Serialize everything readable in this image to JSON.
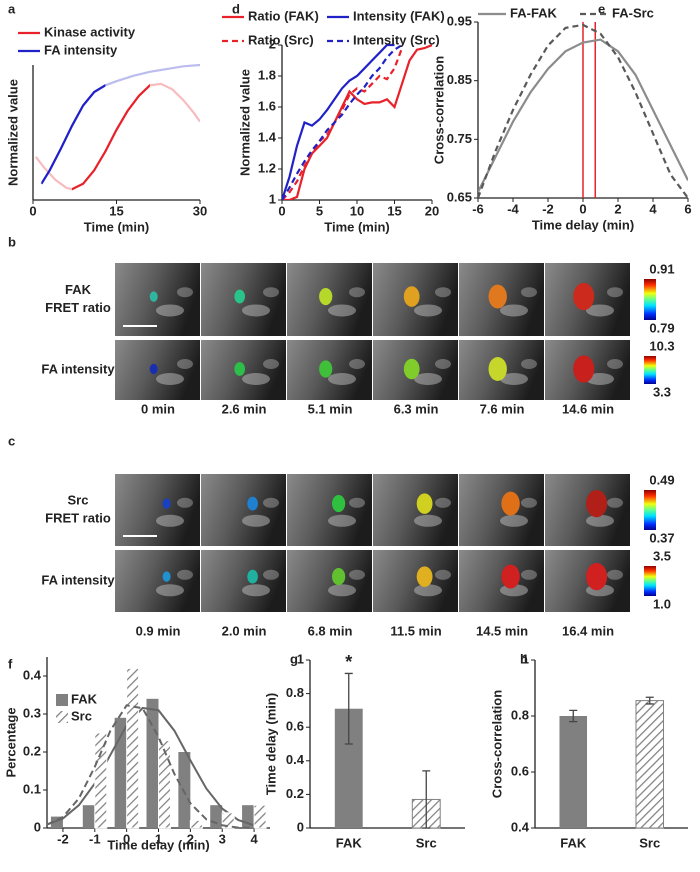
{
  "chart_data": [
    {
      "label": "a",
      "type": "line",
      "xlabel": "Time (min)",
      "ylabel": "Normalized value",
      "xlim": [
        0,
        30
      ],
      "xticks": [
        0,
        15,
        30
      ],
      "ylim": [
        0,
        1
      ],
      "series": [
        {
          "name": "Kinase activity",
          "color": "#e8212a",
          "highlight": [
            7,
            21
          ],
          "x": [
            0.5,
            2,
            4,
            6,
            7,
            9,
            11,
            13,
            15,
            17,
            19,
            21,
            23,
            25,
            27,
            29,
            30
          ],
          "values": [
            0.32,
            0.24,
            0.15,
            0.09,
            0.08,
            0.12,
            0.22,
            0.36,
            0.52,
            0.66,
            0.77,
            0.85,
            0.86,
            0.82,
            0.74,
            0.64,
            0.58
          ]
        },
        {
          "name": "FA intensity",
          "color": "#2121c8",
          "highlight": [
            1.5,
            13
          ],
          "x": [
            1.5,
            3,
            5,
            7,
            9,
            11,
            13,
            15,
            18,
            21,
            24,
            27,
            30
          ],
          "values": [
            0.12,
            0.22,
            0.38,
            0.55,
            0.7,
            0.8,
            0.85,
            0.88,
            0.92,
            0.95,
            0.97,
            0.99,
            1.0
          ]
        }
      ]
    },
    {
      "label": "d",
      "type": "line",
      "xlabel": "Time (min)",
      "ylabel": "Normalized value",
      "xlim": [
        0,
        20
      ],
      "xticks": [
        0,
        5,
        10,
        15,
        20
      ],
      "ylim": [
        1,
        2
      ],
      "yticks": [
        1,
        1.2,
        1.4,
        1.6,
        1.8,
        2
      ],
      "series": [
        {
          "name": "Ratio (FAK)",
          "color": "#e8212a",
          "dash": false,
          "x": [
            0,
            1,
            2,
            3,
            4,
            5,
            6,
            7,
            8,
            9,
            10,
            11,
            12,
            13,
            14,
            15,
            16,
            17,
            18,
            19,
            20
          ],
          "values": [
            1.0,
            1.0,
            1.02,
            1.2,
            1.3,
            1.35,
            1.4,
            1.5,
            1.6,
            1.7,
            1.65,
            1.62,
            1.63,
            1.63,
            1.65,
            1.6,
            1.75,
            1.9,
            1.97,
            1.98,
            2.0
          ]
        },
        {
          "name": "Intensity (FAK)",
          "color": "#2121c8",
          "dash": false,
          "x": [
            0,
            1,
            2,
            3,
            4,
            5,
            6,
            7,
            8,
            9,
            10,
            11,
            12,
            13,
            14,
            15
          ],
          "values": [
            1.0,
            1.15,
            1.35,
            1.5,
            1.48,
            1.52,
            1.58,
            1.65,
            1.72,
            1.77,
            1.8,
            1.85,
            1.9,
            1.95,
            2.0,
            2.0
          ]
        },
        {
          "name": "Ratio (Src)",
          "color": "#e8212a",
          "dash": true,
          "x": [
            0,
            1,
            2,
            3,
            4,
            5,
            6,
            7,
            8,
            9,
            10,
            11,
            12,
            13,
            14,
            15,
            16
          ],
          "values": [
            1.0,
            1.05,
            1.12,
            1.22,
            1.3,
            1.38,
            1.42,
            1.5,
            1.58,
            1.68,
            1.72,
            1.7,
            1.75,
            1.8,
            1.78,
            1.85,
            1.98
          ]
        },
        {
          "name": "Intensity (Src)",
          "color": "#2121c8",
          "dash": true,
          "x": [
            0,
            1,
            2,
            3,
            4,
            5,
            6,
            7,
            8,
            9,
            10,
            11,
            12,
            13,
            14,
            15,
            16
          ],
          "values": [
            1.0,
            1.08,
            1.17,
            1.25,
            1.32,
            1.38,
            1.45,
            1.5,
            1.55,
            1.62,
            1.68,
            1.73,
            1.8,
            1.85,
            1.92,
            1.97,
            2.0
          ]
        }
      ]
    },
    {
      "label": "e",
      "type": "line",
      "xlabel": "Time delay (min)",
      "ylabel": "Cross-correlation",
      "xlim": [
        -6,
        6
      ],
      "xticks": [
        -6,
        -4,
        -2,
        0,
        2,
        4,
        6
      ],
      "ylim": [
        0.65,
        0.95
      ],
      "yticks": [
        0.65,
        0.75,
        0.85,
        0.95
      ],
      "vlines": [
        0,
        0.7
      ],
      "vline_color": "#e8212a",
      "series": [
        {
          "name": "FA-FAK",
          "color": "#8c8c8c",
          "dash": false,
          "x": [
            -6,
            -5,
            -4,
            -3,
            -2,
            -1,
            0,
            1,
            2,
            3,
            4,
            5,
            6
          ],
          "values": [
            0.66,
            0.72,
            0.78,
            0.83,
            0.87,
            0.9,
            0.915,
            0.92,
            0.9,
            0.86,
            0.8,
            0.74,
            0.68
          ]
        },
        {
          "name": "FA-Src",
          "color": "#595959",
          "dash": true,
          "x": [
            -6,
            -5,
            -4,
            -3,
            -2,
            -1,
            0,
            1,
            2,
            3,
            4,
            5,
            6
          ],
          "values": [
            0.65,
            0.73,
            0.8,
            0.86,
            0.91,
            0.94,
            0.945,
            0.93,
            0.89,
            0.83,
            0.76,
            0.69,
            0.65
          ]
        }
      ]
    },
    {
      "label": "f",
      "type": "histogram",
      "xlabel": "Time delay (min)",
      "ylabel": "Percentage",
      "xlim": [
        -2.5,
        4.5
      ],
      "xticks": [
        -2,
        -1,
        0,
        1,
        2,
        3,
        4
      ],
      "ylim": [
        0,
        0.45
      ],
      "yticks": [
        0,
        0.1,
        0.2,
        0.3,
        0.4
      ],
      "x": [
        -2,
        -1,
        0,
        1,
        2,
        3,
        4
      ],
      "fit_x": [
        -2.5,
        -2,
        -1.5,
        -1,
        -0.5,
        0,
        0.5,
        1,
        1.5,
        2,
        2.5,
        3,
        3.5,
        4
      ],
      "series": [
        {
          "name": "FAK",
          "color": "#808080",
          "hatch": false,
          "dash": false,
          "values": [
            0.03,
            0.06,
            0.29,
            0.34,
            0.2,
            0.06,
            0.06
          ],
          "fit": [
            0.009,
            0.025,
            0.06,
            0.117,
            0.194,
            0.27,
            0.316,
            0.31,
            0.256,
            0.178,
            0.104,
            0.051,
            0.021,
            0.007
          ]
        },
        {
          "name": "Src",
          "color": "#808080",
          "hatch": true,
          "dash": true,
          "values": [
            0,
            0.25,
            0.42,
            0.23,
            0.02,
            0.04,
            0.06
          ],
          "fit": [
            0.009,
            0.029,
            0.078,
            0.161,
            0.258,
            0.323,
            0.315,
            0.24,
            0.142,
            0.065,
            0.023,
            0.007,
            0.001,
            0
          ]
        }
      ]
    },
    {
      "label": "g",
      "type": "bar",
      "ylabel": "Time delay (min)",
      "annotation": "*",
      "ylim": [
        0,
        1
      ],
      "yticks": [
        0,
        0.2,
        0.4,
        0.6,
        0.8,
        1
      ],
      "categories": [
        "FAK",
        "Src"
      ],
      "values": [
        0.71,
        0.17
      ],
      "errors": [
        0.21,
        0.17
      ],
      "color": "#808080",
      "hatch": [
        false,
        true
      ]
    },
    {
      "label": "h",
      "type": "bar",
      "ylabel": "Cross-correlation",
      "ylim": [
        0.4,
        1
      ],
      "yticks": [
        0.4,
        0.6,
        0.8,
        1
      ],
      "categories": [
        "FAK",
        "Src"
      ],
      "values": [
        0.8,
        0.855
      ],
      "errors": [
        0.02,
        0.012
      ],
      "color": "#808080",
      "hatch": [
        false,
        true
      ]
    }
  ],
  "image_panels": [
    {
      "label": "b",
      "times": [
        "0 min",
        "2.6 min",
        "5.1 min",
        "6.3 min",
        "7.6 min",
        "14.6 min"
      ],
      "rows": [
        {
          "label": [
            "FAK",
            "FRET ratio"
          ],
          "colorbar": [
            "0.91",
            "0.79"
          ],
          "blob_colors": [
            "#2fb6a0",
            "#29c48a",
            "#b6d82a",
            "#e0a020",
            "#e07820",
            "#cc2a1c"
          ]
        },
        {
          "label": [
            "FA intensity"
          ],
          "colorbar": [
            "10.3",
            "3.3"
          ],
          "blob_colors": [
            "#1a2fb0",
            "#2dbf4a",
            "#3fbf3a",
            "#7fcc2a",
            "#c6d62a",
            "#c8201c"
          ]
        }
      ]
    },
    {
      "label": "c",
      "times": [
        "0.9 min",
        "2.0 min",
        "6.8 min",
        "11.5 min",
        "14.5 min",
        "16.4 min"
      ],
      "rows": [
        {
          "label": [
            "Src",
            "FRET ratio"
          ],
          "colorbar": [
            "0.49",
            "0.37"
          ],
          "blob_colors": [
            "#1840c0",
            "#2080d0",
            "#30c040",
            "#d0d020",
            "#e07018",
            "#b02018"
          ]
        },
        {
          "label": [
            "FA intensity"
          ],
          "colorbar": [
            "3.5",
            "1.0"
          ],
          "blob_colors": [
            "#2090d0",
            "#20b0a0",
            "#60c030",
            "#e0b020",
            "#d02020",
            "#d02020"
          ]
        }
      ]
    }
  ]
}
